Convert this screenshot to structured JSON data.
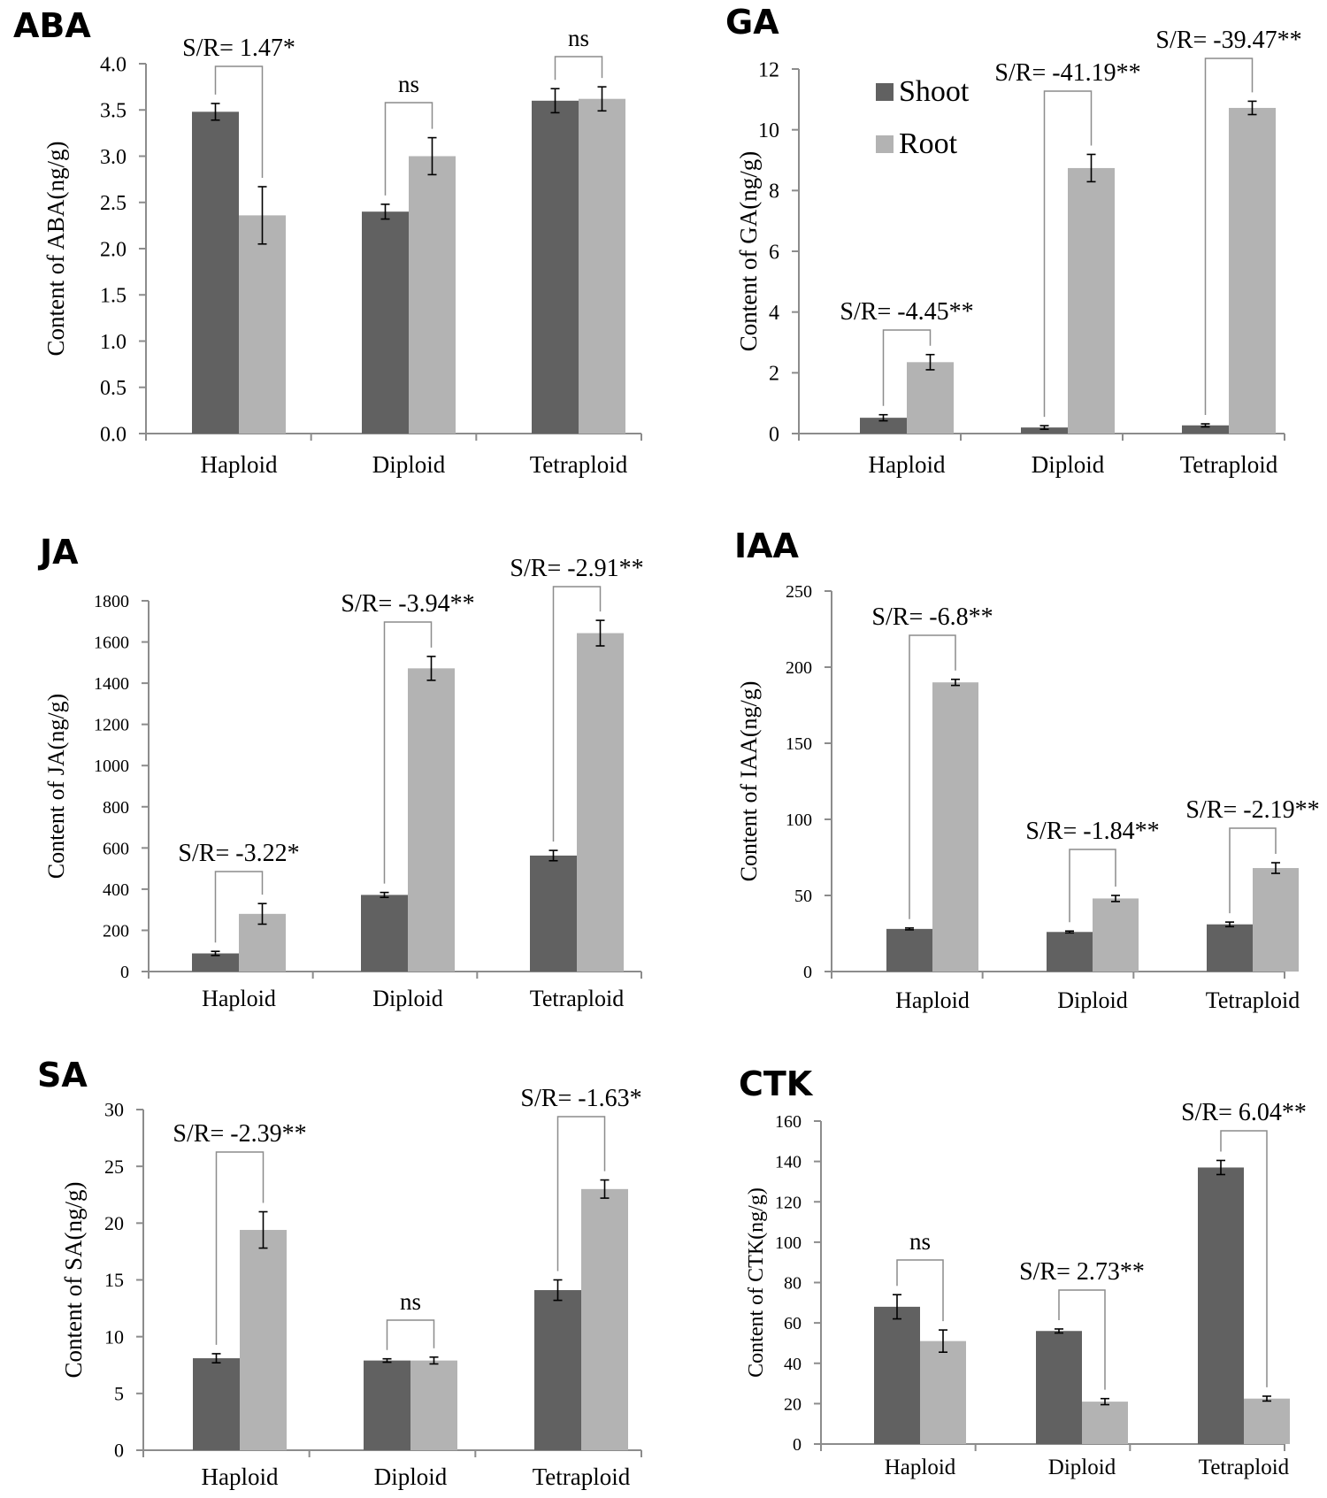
{
  "colors": {
    "shoot": "#616161",
    "root": "#b3b3b3",
    "axis": "#8c8c8c",
    "bracket": "#8c8c8c"
  },
  "legend": {
    "shoot": "Shoot",
    "root": "Root"
  },
  "chart_data": [
    {
      "id": "aba",
      "type": "bar",
      "title": "ABA",
      "ylabel": "Content of ABA(ng/g)",
      "categories": [
        "Haploid",
        "Diploid",
        "Tetraploid"
      ],
      "ylim": [
        0,
        4.0
      ],
      "ticks": [
        "0.0",
        "0.5",
        "1.0",
        "1.5",
        "2.0",
        "2.5",
        "3.0",
        "3.5",
        "4.0"
      ],
      "series": [
        {
          "name": "Shoot",
          "values": [
            3.48,
            2.4,
            3.6
          ],
          "errors": [
            0.09,
            0.08,
            0.13
          ]
        },
        {
          "name": "Root",
          "values": [
            2.36,
            3.0,
            3.62
          ],
          "errors": [
            0.31,
            0.2,
            0.13
          ]
        }
      ],
      "annotations": [
        "S/R= 1.47*",
        "ns",
        "ns"
      ]
    },
    {
      "id": "ga",
      "type": "bar",
      "title": "GA",
      "ylabel": "Content of GA(ng/g)",
      "categories": [
        "Haploid",
        "Diploid",
        "Tetraploid"
      ],
      "ylim": [
        0,
        12
      ],
      "ticks": [
        "0",
        "2",
        "4",
        "6",
        "8",
        "10",
        "12"
      ],
      "series": [
        {
          "name": "Shoot",
          "values": [
            0.52,
            0.2,
            0.27
          ],
          "errors": [
            0.1,
            0.06,
            0.05
          ]
        },
        {
          "name": "Root",
          "values": [
            2.35,
            8.74,
            10.72
          ],
          "errors": [
            0.25,
            0.45,
            0.22
          ]
        }
      ],
      "annotations": [
        "S/R= -4.45**",
        "S/R= -41.19**",
        "S/R= -39.47**"
      ]
    },
    {
      "id": "ja",
      "type": "bar",
      "title": "JA",
      "ylabel": "Content of JA(ng/g)",
      "categories": [
        "Haploid",
        "Diploid",
        "Tetraploid"
      ],
      "ylim": [
        0,
        1800
      ],
      "ticks": [
        "0",
        "200",
        "400",
        "600",
        "800",
        "1000",
        "1200",
        "1400",
        "1600",
        "1800"
      ],
      "series": [
        {
          "name": "Shoot",
          "values": [
            88,
            372,
            563
          ],
          "errors": [
            10,
            12,
            25
          ]
        },
        {
          "name": "Root",
          "values": [
            280,
            1472,
            1643
          ],
          "errors": [
            50,
            58,
            62
          ]
        }
      ],
      "annotations": [
        "S/R= -3.22*",
        "S/R= -3.94**",
        "S/R= -2.91**"
      ]
    },
    {
      "id": "iaa",
      "type": "bar",
      "title": "IAA",
      "ylabel": "Content of IAA(ng/g)",
      "categories": [
        "Haploid",
        "Diploid",
        "Tetraploid"
      ],
      "ylim": [
        0,
        250
      ],
      "ticks": [
        "0",
        "50",
        "100",
        "150",
        "200",
        "250"
      ],
      "series": [
        {
          "name": "Shoot",
          "values": [
            28,
            26,
            31
          ],
          "errors": [
            0.6,
            0.6,
            1.5
          ]
        },
        {
          "name": "Root",
          "values": [
            190,
            48,
            68
          ],
          "errors": [
            2,
            2,
            3.5
          ]
        }
      ],
      "annotations": [
        "S/R= -6.8**",
        "S/R= -1.84**",
        "S/R= -2.19**"
      ]
    },
    {
      "id": "sa",
      "type": "bar",
      "title": "SA",
      "ylabel": "Content of SA(ng/g)",
      "categories": [
        "Haploid",
        "Diploid",
        "Tetraploid"
      ],
      "ylim": [
        0,
        30
      ],
      "ticks": [
        "0",
        "5",
        "10",
        "15",
        "20",
        "25",
        "30"
      ],
      "series": [
        {
          "name": "Shoot",
          "values": [
            8.1,
            7.9,
            14.1
          ],
          "errors": [
            0.4,
            0.15,
            0.9
          ]
        },
        {
          "name": "Root",
          "values": [
            19.4,
            7.9,
            23.0
          ],
          "errors": [
            1.6,
            0.3,
            0.8
          ]
        }
      ],
      "annotations": [
        "S/R= -2.39**",
        "ns",
        "S/R= -1.63*"
      ]
    },
    {
      "id": "ctk",
      "type": "bar",
      "title": "CTK",
      "ylabel": "Content of CTK(ng/g)",
      "categories": [
        "Haploid",
        "Diploid",
        "Tetraploid"
      ],
      "ylim": [
        0,
        160
      ],
      "ticks": [
        "0",
        "20",
        "40",
        "60",
        "80",
        "100",
        "120",
        "140",
        "160"
      ],
      "series": [
        {
          "name": "Shoot",
          "values": [
            68,
            56,
            137
          ],
          "errors": [
            6,
            1,
            3.5
          ]
        },
        {
          "name": "Root",
          "values": [
            51,
            21,
            22.5
          ],
          "errors": [
            5.5,
            1.5,
            1.2
          ]
        }
      ],
      "annotations": [
        "ns",
        "S/R= 2.73**",
        "S/R= 6.04**"
      ]
    }
  ]
}
